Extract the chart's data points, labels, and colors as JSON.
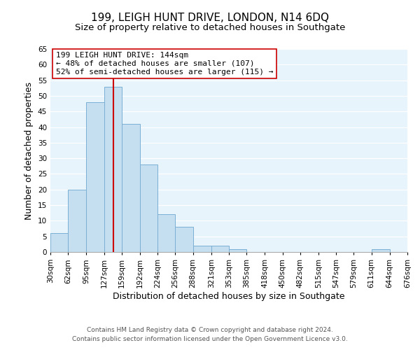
{
  "title": "199, LEIGH HUNT DRIVE, LONDON, N14 6DQ",
  "subtitle": "Size of property relative to detached houses in Southgate",
  "xlabel": "Distribution of detached houses by size in Southgate",
  "ylabel": "Number of detached properties",
  "bin_edges": [
    30,
    62,
    95,
    127,
    159,
    192,
    224,
    256,
    288,
    321,
    353,
    385,
    418,
    450,
    482,
    515,
    547,
    579,
    611,
    644,
    676
  ],
  "bar_heights": [
    6,
    20,
    48,
    53,
    41,
    28,
    12,
    8,
    2,
    2,
    1,
    0,
    0,
    0,
    0,
    0,
    0,
    0,
    1,
    0
  ],
  "bar_color": "#c5dff0",
  "bar_edgecolor": "#7ab0d4",
  "property_size": 144,
  "red_line_color": "#cc0000",
  "annotation_line1": "199 LEIGH HUNT DRIVE: 144sqm",
  "annotation_line2": "← 48% of detached houses are smaller (107)",
  "annotation_line3": "52% of semi-detached houses are larger (115) →",
  "annotation_boxcolor": "white",
  "annotation_edgecolor": "#cc0000",
  "ylim": [
    0,
    65
  ],
  "yticks": [
    0,
    5,
    10,
    15,
    20,
    25,
    30,
    35,
    40,
    45,
    50,
    55,
    60,
    65
  ],
  "footnote1": "Contains HM Land Registry data © Crown copyright and database right 2024.",
  "footnote2": "Contains public sector information licensed under the Open Government Licence v3.0.",
  "background_color": "#ffffff",
  "grid_color": "#ffffff",
  "plot_bg_color": "#e8f4fc",
  "title_fontsize": 11,
  "subtitle_fontsize": 9.5,
  "label_fontsize": 9,
  "tick_fontsize": 7.5,
  "annotation_fontsize": 8,
  "footnote_fontsize": 6.5
}
